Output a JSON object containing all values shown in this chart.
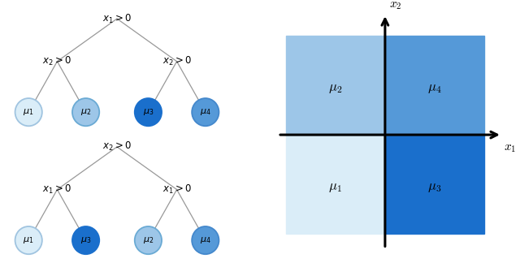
{
  "tree1": {
    "root_label": "$x_1 > 0$",
    "left_label": "$x_2 > 0$",
    "right_label": "$x_2 > 0$",
    "leaves": [
      {
        "label": "$\\mu_1$",
        "color": "#daedf8",
        "ec": "#a0c4e0"
      },
      {
        "label": "$\\mu_2$",
        "color": "#9dc6e8",
        "ec": "#6aaad4"
      },
      {
        "label": "$\\mu_3$",
        "color": "#1a6fcc",
        "ec": "#1a6fcc"
      },
      {
        "label": "$\\mu_4$",
        "color": "#5599d8",
        "ec": "#4488cc"
      }
    ]
  },
  "tree2": {
    "root_label": "$x_2 > 0$",
    "left_label": "$x_1 > 0$",
    "right_label": "$x_1 > 0$",
    "leaves": [
      {
        "label": "$\\mu_1$",
        "color": "#daedf8",
        "ec": "#a0c4e0"
      },
      {
        "label": "$\\mu_3$",
        "color": "#1a6fcc",
        "ec": "#1a6fcc"
      },
      {
        "label": "$\\mu_2$",
        "color": "#9dc6e8",
        "ec": "#6aaad4"
      },
      {
        "label": "$\\mu_4$",
        "color": "#5599d8",
        "ec": "#4488cc"
      }
    ]
  },
  "quadrant": {
    "q_bl_color": "#daedf8",
    "q_tl_color": "#9dc6e8",
    "q_br_color": "#1a6fcc",
    "q_tr_color": "#5599d8",
    "x1_label": "$x_1$",
    "x2_label": "$x_2$"
  },
  "line_color": "#999999",
  "bg_color": "#ffffff"
}
